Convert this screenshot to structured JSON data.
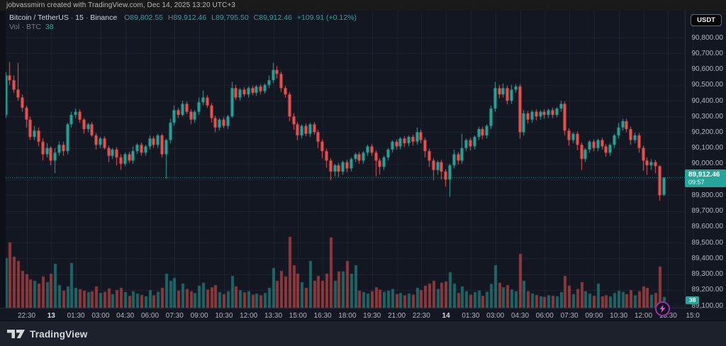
{
  "attribution": "jobvassmirn created with TradingView.com, Dec 14, 2025 13:20 UTC+3",
  "header": {
    "symbol": "Bitcoin / TetherUS",
    "sep": "·",
    "interval": "15",
    "exchange": "Binance",
    "open_label": "O",
    "open": "89,802.55",
    "high_label": "H",
    "high": "89,912.46",
    "low_label": "L",
    "low": "89,795.50",
    "close_label": "C",
    "close": "89,912.46",
    "change": "+109.91 (+0.12%)"
  },
  "volume_row": {
    "label": "Vol",
    "sep": "·",
    "unit": "BTC",
    "value": "38"
  },
  "currency_button": "USDT",
  "last_price_label": {
    "price": "89,912.46",
    "countdown": "09:57"
  },
  "volume_badge": "38",
  "footer": {
    "brand": "TradingView"
  },
  "price_axis_labels": [
    "90,800.00",
    "90,700.00",
    "90,600.00",
    "90,500.00",
    "90,400.00",
    "90,300.00",
    "90,200.00",
    "90,100.00",
    "90,000.00",
    "89,900.00",
    "89,800.00",
    "89,700.00",
    "89,600.00",
    "89,500.00",
    "89,400.00",
    "89,300.00",
    "89,200.00",
    "89,100.00"
  ],
  "time_axis_ticks": [
    {
      "i": 5,
      "label": "22:30",
      "em": false
    },
    {
      "i": 11,
      "label": "13",
      "em": true
    },
    {
      "i": 17,
      "label": "01:30",
      "em": false
    },
    {
      "i": 23,
      "label": "03:00",
      "em": false
    },
    {
      "i": 29,
      "label": "04:30",
      "em": false
    },
    {
      "i": 35,
      "label": "06:00",
      "em": false
    },
    {
      "i": 41,
      "label": "07:30",
      "em": false
    },
    {
      "i": 47,
      "label": "09:00",
      "em": false
    },
    {
      "i": 53,
      "label": "10:30",
      "em": false
    },
    {
      "i": 59,
      "label": "12:00",
      "em": false
    },
    {
      "i": 65,
      "label": "13:30",
      "em": false
    },
    {
      "i": 71,
      "label": "15:00",
      "em": false
    },
    {
      "i": 77,
      "label": "16:30",
      "em": false
    },
    {
      "i": 83,
      "label": "18:00",
      "em": false
    },
    {
      "i": 89,
      "label": "19:30",
      "em": false
    },
    {
      "i": 95,
      "label": "21:00",
      "em": false
    },
    {
      "i": 101,
      "label": "22:30",
      "em": false
    },
    {
      "i": 107,
      "label": "14",
      "em": true
    },
    {
      "i": 113,
      "label": "01:30",
      "em": false
    },
    {
      "i": 119,
      "label": "03:00",
      "em": false
    },
    {
      "i": 125,
      "label": "04:30",
      "em": false
    },
    {
      "i": 131,
      "label": "06:00",
      "em": false
    },
    {
      "i": 137,
      "label": "07:30",
      "em": false
    },
    {
      "i": 143,
      "label": "09:00",
      "em": false
    },
    {
      "i": 149,
      "label": "10:30",
      "em": false
    },
    {
      "i": 155,
      "label": "12:00",
      "em": false
    },
    {
      "i": 161,
      "label": "13:30",
      "em": false
    },
    {
      "i": 167,
      "label": "15:0",
      "em": false
    }
  ],
  "chart_data": {
    "type": "candlestick",
    "title": "Bitcoin / TetherUS · 15 · Binance",
    "interval_minutes": 15,
    "price_range": [
      89100,
      90800
    ],
    "grid_step": 100,
    "last_price": 89912.46,
    "current_volume_btc": 38,
    "up_color": "#26a69a",
    "down_color": "#ef5350",
    "vol_up_color": "rgba(38,166,154,0.55)",
    "vol_down_color": "rgba(239,83,80,0.55)",
    "candles_format": [
      "open",
      "high",
      "low",
      "close",
      "volume_btc"
    ],
    "candles": [
      [
        90310,
        90580,
        90290,
        90560,
        175
      ],
      [
        90560,
        90645,
        90500,
        90530,
        230
      ],
      [
        90530,
        90560,
        90450,
        90470,
        180
      ],
      [
        90470,
        90640,
        90400,
        90420,
        165
      ],
      [
        90420,
        90440,
        90330,
        90355,
        130
      ],
      [
        90355,
        90370,
        90230,
        90280,
        118
      ],
      [
        90280,
        90300,
        90150,
        90170,
        100
      ],
      [
        90170,
        90240,
        90150,
        90210,
        95
      ],
      [
        90210,
        90230,
        90110,
        90140,
        85
      ],
      [
        90140,
        90160,
        90020,
        90060,
        110
      ],
      [
        90060,
        90130,
        90040,
        90100,
        90
      ],
      [
        90100,
        90110,
        89990,
        90020,
        120
      ],
      [
        90020,
        90100,
        89940,
        90070,
        155
      ],
      [
        90070,
        90140,
        90050,
        90120,
        80
      ],
      [
        90120,
        90140,
        90050,
        90080,
        60
      ],
      [
        90080,
        90260,
        90060,
        90250,
        75
      ],
      [
        90250,
        90330,
        90230,
        90310,
        158
      ],
      [
        90310,
        90350,
        90290,
        90330,
        70
      ],
      [
        90330,
        90345,
        90260,
        90280,
        65
      ],
      [
        90280,
        90290,
        90190,
        90220,
        60
      ],
      [
        90220,
        90260,
        90200,
        90250,
        55
      ],
      [
        90250,
        90265,
        90170,
        90180,
        58
      ],
      [
        90180,
        90195,
        90090,
        90120,
        75
      ],
      [
        90120,
        90170,
        90100,
        90160,
        52
      ],
      [
        90160,
        90175,
        90090,
        90100,
        56
      ],
      [
        90100,
        90115,
        90010,
        90050,
        68
      ],
      [
        90050,
        90100,
        90030,
        90090,
        48
      ],
      [
        90090,
        90105,
        89990,
        90040,
        62
      ],
      [
        90040,
        90060,
        89960,
        90000,
        70
      ],
      [
        90000,
        90070,
        89985,
        90060,
        55
      ],
      [
        90060,
        90075,
        90005,
        90020,
        42
      ],
      [
        90020,
        90110,
        90000,
        90080,
        58
      ],
      [
        90080,
        90130,
        90060,
        90120,
        50
      ],
      [
        90120,
        90135,
        90050,
        90070,
        45
      ],
      [
        90070,
        90120,
        90050,
        90110,
        40
      ],
      [
        90110,
        90180,
        90090,
        90160,
        62
      ],
      [
        90160,
        90175,
        90100,
        90120,
        44
      ],
      [
        90120,
        90190,
        90100,
        90180,
        56
      ],
      [
        90180,
        90190,
        90040,
        90060,
        70
      ],
      [
        90060,
        90160,
        89905,
        90150,
        120
      ],
      [
        90150,
        90285,
        90130,
        90260,
        95
      ],
      [
        90260,
        90370,
        90240,
        90340,
        105
      ],
      [
        90340,
        90355,
        90290,
        90310,
        60
      ],
      [
        90310,
        90400,
        90300,
        90380,
        85
      ],
      [
        90380,
        90395,
        90315,
        90330,
        66
      ],
      [
        90330,
        90345,
        90250,
        90280,
        58
      ],
      [
        90280,
        90340,
        90260,
        90330,
        52
      ],
      [
        90330,
        90420,
        90310,
        90390,
        78
      ],
      [
        90390,
        90465,
        90370,
        90420,
        88
      ],
      [
        90420,
        90435,
        90355,
        90370,
        64
      ],
      [
        90370,
        90385,
        90260,
        90290,
        72
      ],
      [
        90290,
        90305,
        90200,
        90230,
        80
      ],
      [
        90230,
        90290,
        90210,
        90280,
        55
      ],
      [
        90280,
        90295,
        90225,
        90240,
        48
      ],
      [
        90240,
        90310,
        90220,
        90300,
        58
      ],
      [
        90300,
        90520,
        90290,
        90480,
        112
      ],
      [
        90480,
        90500,
        90405,
        90420,
        75
      ],
      [
        90420,
        90480,
        90400,
        90470,
        62
      ],
      [
        90470,
        90485,
        90425,
        90440,
        54
      ],
      [
        90440,
        90490,
        90420,
        90480,
        58
      ],
      [
        90480,
        90495,
        90435,
        90450,
        46
      ],
      [
        90450,
        90500,
        90430,
        90490,
        50
      ],
      [
        90490,
        90505,
        90440,
        90460,
        44
      ],
      [
        90460,
        90510,
        90445,
        90500,
        52
      ],
      [
        90500,
        90560,
        90480,
        90530,
        70
      ],
      [
        90530,
        90640,
        90510,
        90595,
        140
      ],
      [
        90595,
        90620,
        90540,
        90570,
        95
      ],
      [
        90570,
        90585,
        90455,
        90480,
        130
      ],
      [
        90480,
        90495,
        90420,
        90440,
        110
      ],
      [
        90440,
        90455,
        90270,
        90300,
        250
      ],
      [
        90300,
        90320,
        90215,
        90250,
        150
      ],
      [
        90250,
        90265,
        90150,
        90180,
        120
      ],
      [
        90180,
        90250,
        90160,
        90240,
        90
      ],
      [
        90240,
        90255,
        90175,
        90190,
        70
      ],
      [
        90190,
        90260,
        90170,
        90250,
        165
      ],
      [
        90250,
        90265,
        90185,
        90200,
        95
      ],
      [
        90200,
        90215,
        90100,
        90140,
        112
      ],
      [
        90140,
        90155,
        90035,
        90080,
        95
      ],
      [
        90080,
        90095,
        89975,
        90020,
        120
      ],
      [
        90020,
        90035,
        89895,
        89950,
        248
      ],
      [
        89950,
        90000,
        89920,
        89990,
        95
      ],
      [
        89990,
        90005,
        89915,
        89950,
        128
      ],
      [
        89950,
        90020,
        89930,
        90010,
        128
      ],
      [
        90010,
        90025,
        89945,
        89970,
        165
      ],
      [
        89970,
        90040,
        89950,
        90030,
        120
      ],
      [
        90030,
        90070,
        90010,
        90060,
        150
      ],
      [
        90060,
        90075,
        90000,
        90020,
        60
      ],
      [
        90020,
        90080,
        90000,
        90070,
        55
      ],
      [
        90070,
        90120,
        90050,
        90110,
        50
      ],
      [
        90110,
        90125,
        90050,
        90070,
        58
      ],
      [
        90070,
        90085,
        89920,
        90020,
        72
      ],
      [
        90020,
        90035,
        89930,
        89980,
        64
      ],
      [
        89980,
        90050,
        89960,
        90040,
        56
      ],
      [
        90040,
        90100,
        90020,
        90090,
        60
      ],
      [
        90090,
        90150,
        90070,
        90140,
        66
      ],
      [
        90140,
        90155,
        90090,
        90110,
        48
      ],
      [
        90110,
        90170,
        90090,
        90160,
        52
      ],
      [
        90160,
        90175,
        90105,
        90130,
        44
      ],
      [
        90130,
        90180,
        90110,
        90170,
        50
      ],
      [
        90170,
        90185,
        90115,
        90140,
        46
      ],
      [
        90140,
        90230,
        90120,
        90200,
        70
      ],
      [
        90200,
        90215,
        90130,
        90150,
        62
      ],
      [
        90150,
        90165,
        90040,
        90080,
        78
      ],
      [
        90080,
        90095,
        89980,
        90020,
        85
      ],
      [
        90020,
        90035,
        89895,
        89960,
        95
      ],
      [
        89960,
        90020,
        89930,
        90010,
        66
      ],
      [
        90010,
        90025,
        89900,
        89950,
        88
      ],
      [
        89950,
        89965,
        89855,
        89900,
        92
      ],
      [
        89900,
        90000,
        89790,
        89990,
        125
      ],
      [
        89990,
        90090,
        89970,
        90060,
        85
      ],
      [
        90060,
        90075,
        89995,
        90020,
        52
      ],
      [
        90020,
        90190,
        90000,
        90100,
        75
      ],
      [
        90100,
        90160,
        90080,
        90150,
        58
      ],
      [
        90150,
        90165,
        90085,
        90110,
        46
      ],
      [
        90110,
        90180,
        90090,
        90170,
        55
      ],
      [
        90170,
        90235,
        90150,
        90220,
        60
      ],
      [
        90220,
        90235,
        90155,
        90180,
        42
      ],
      [
        90180,
        90250,
        90160,
        90240,
        56
      ],
      [
        90240,
        90370,
        90220,
        90350,
        84
      ],
      [
        90350,
        90520,
        90330,
        90480,
        150
      ],
      [
        90480,
        90500,
        90415,
        90440,
        88
      ],
      [
        90440,
        90510,
        90420,
        90480,
        72
      ],
      [
        90480,
        90495,
        90375,
        90400,
        80
      ],
      [
        90400,
        90500,
        90380,
        90470,
        64
      ],
      [
        90470,
        90505,
        90450,
        90490,
        58
      ],
      [
        90490,
        90505,
        90160,
        90200,
        190
      ],
      [
        90200,
        90340,
        90180,
        90320,
        95
      ],
      [
        90320,
        90335,
        90255,
        90280,
        58
      ],
      [
        90280,
        90340,
        90260,
        90330,
        50
      ],
      [
        90330,
        90345,
        90275,
        90300,
        45
      ],
      [
        90300,
        90340,
        90280,
        90330,
        40
      ],
      [
        90330,
        90345,
        90285,
        90310,
        38
      ],
      [
        90310,
        90350,
        90290,
        90340,
        44
      ],
      [
        90340,
        90355,
        90290,
        90310,
        42
      ],
      [
        90310,
        90360,
        90295,
        90350,
        40
      ],
      [
        90350,
        90400,
        90330,
        90380,
        55
      ],
      [
        90380,
        90395,
        90180,
        90210,
        112
      ],
      [
        90210,
        90225,
        90115,
        90150,
        78
      ],
      [
        90150,
        90200,
        90130,
        90190,
        48
      ],
      [
        90190,
        90205,
        90085,
        90120,
        66
      ],
      [
        90120,
        90135,
        89960,
        90030,
        90
      ],
      [
        90030,
        90100,
        90010,
        90090,
        58
      ],
      [
        90090,
        90150,
        90070,
        90140,
        50
      ],
      [
        90140,
        90155,
        90080,
        90100,
        42
      ],
      [
        90100,
        90160,
        90080,
        90150,
        85
      ],
      [
        90150,
        90165,
        90090,
        90110,
        40
      ],
      [
        90110,
        90125,
        90045,
        90070,
        44
      ],
      [
        90070,
        90130,
        90050,
        90120,
        40
      ],
      [
        90120,
        90190,
        90100,
        90180,
        52
      ],
      [
        90180,
        90260,
        90160,
        90230,
        60
      ],
      [
        90230,
        90285,
        90210,
        90270,
        56
      ],
      [
        90270,
        90285,
        90200,
        90220,
        48
      ],
      [
        90220,
        90235,
        90120,
        90150,
        62
      ],
      [
        90150,
        90195,
        90130,
        90180,
        44
      ],
      [
        90180,
        90195,
        90070,
        90100,
        58
      ],
      [
        90100,
        90115,
        89955,
        90020,
        75
      ],
      [
        90020,
        90040,
        89930,
        89990,
        70
      ],
      [
        89990,
        90030,
        89960,
        90010,
        46
      ],
      [
        90010,
        90025,
        89940,
        89985,
        52
      ],
      [
        89985,
        89990,
        89765,
        89800,
        145
      ],
      [
        89802.55,
        89912.46,
        89795.5,
        89912.46,
        38
      ]
    ]
  }
}
